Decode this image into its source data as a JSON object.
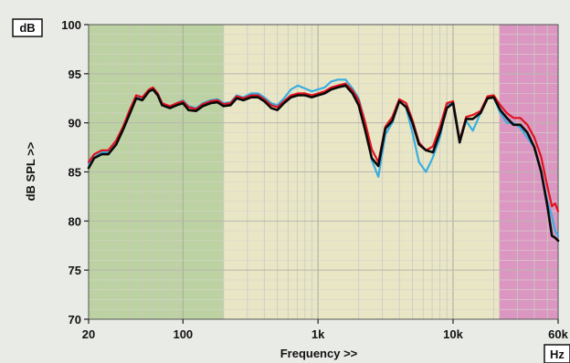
{
  "chart_data": {
    "type": "line",
    "xlabel": "Frequency >>",
    "ylabel": "dB SPL >>",
    "y_unit": "dB",
    "x_unit": "Hz",
    "x_scale": "log",
    "xlim": [
      20,
      60000
    ],
    "ylim": [
      70,
      100
    ],
    "grid": true,
    "x_ticks": [
      {
        "value": 20,
        "label": "20"
      },
      {
        "value": 100,
        "label": "100"
      },
      {
        "value": 1000,
        "label": "1k"
      },
      {
        "value": 10000,
        "label": "10k"
      },
      {
        "value": 60000,
        "label": "60k"
      }
    ],
    "y_ticks": [
      {
        "value": 100,
        "label": "100"
      },
      {
        "value": 95,
        "label": "95"
      },
      {
        "value": 90,
        "label": "90"
      },
      {
        "value": 85,
        "label": "85"
      },
      {
        "value": 80,
        "label": "80"
      },
      {
        "value": 75,
        "label": "75"
      },
      {
        "value": 70,
        "label": "70"
      }
    ],
    "bands": [
      {
        "from": 20,
        "to": 200,
        "color": "#bdd2a2"
      },
      {
        "from": 200,
        "to": 22000,
        "color": "#e9e6c6"
      },
      {
        "from": 22000,
        "to": 60000,
        "color": "#db97c1"
      }
    ],
    "series": [
      {
        "color": "#3aaee0",
        "width": 2.2,
        "x": [
          20,
          22,
          25,
          28,
          32,
          36,
          40,
          45,
          50,
          56,
          60,
          65,
          70,
          80,
          90,
          100,
          110,
          125,
          140,
          160,
          180,
          200,
          225,
          250,
          280,
          320,
          360,
          400,
          450,
          500,
          560,
          630,
          710,
          800,
          900,
          1000,
          1120,
          1250,
          1400,
          1600,
          1800,
          2000,
          2240,
          2500,
          2800,
          3150,
          3550,
          4000,
          4500,
          5000,
          5600,
          6300,
          7100,
          8000,
          9000,
          10000,
          11200,
          12500,
          14000,
          16000,
          18000,
          20000,
          22400,
          25000,
          28000,
          31500,
          35500,
          40000,
          45000,
          50000,
          54000,
          57000,
          60000
        ],
        "y": [
          85.8,
          86.5,
          87,
          87,
          88,
          89.5,
          91,
          92.7,
          92.4,
          93.3,
          93.5,
          93,
          92,
          91.6,
          92,
          92.3,
          91.7,
          91.5,
          92,
          92.3,
          92.4,
          92,
          92.1,
          92.8,
          92.6,
          93,
          93,
          92.6,
          92,
          91.8,
          92.5,
          93.4,
          93.8,
          93.5,
          93.2,
          93.4,
          93.6,
          94.2,
          94.4,
          94.4,
          93.5,
          92.5,
          90,
          86.2,
          84.5,
          88.8,
          90,
          92.3,
          91.5,
          89,
          86,
          85,
          86.5,
          88.5,
          91.8,
          92.2,
          88.4,
          90.2,
          89.2,
          91,
          92.5,
          92.6,
          91,
          90,
          90,
          89.5,
          88.5,
          87.5,
          85,
          82,
          80.5,
          79,
          78.5
        ]
      },
      {
        "color": "#e2121c",
        "width": 2.2,
        "x": [
          20,
          22,
          25,
          28,
          32,
          36,
          40,
          45,
          50,
          56,
          60,
          65,
          70,
          80,
          90,
          100,
          110,
          125,
          140,
          160,
          180,
          200,
          225,
          250,
          280,
          320,
          360,
          400,
          450,
          500,
          560,
          630,
          710,
          800,
          900,
          1000,
          1120,
          1250,
          1400,
          1600,
          1800,
          2000,
          2240,
          2500,
          2800,
          3150,
          3550,
          4000,
          4500,
          5000,
          5600,
          6300,
          7100,
          8000,
          9000,
          10000,
          11200,
          12500,
          14000,
          16000,
          18000,
          20000,
          22400,
          25000,
          28000,
          31500,
          35500,
          40000,
          45000,
          50000,
          54000,
          57000,
          60000
        ],
        "y": [
          86,
          86.8,
          87.2,
          87.2,
          88.2,
          89.6,
          91.2,
          92.8,
          92.6,
          93.4,
          93.6,
          93,
          92,
          91.7,
          92,
          92.2,
          91.6,
          91.4,
          91.9,
          92.2,
          92.3,
          91.9,
          92,
          92.7,
          92.5,
          92.8,
          92.8,
          92.4,
          91.8,
          91.6,
          92.2,
          92.8,
          93,
          93,
          92.8,
          93,
          93.2,
          93.6,
          93.8,
          94,
          93.3,
          92.3,
          90,
          87.3,
          86,
          89.6,
          90.6,
          92.4,
          92,
          90.3,
          88,
          87.2,
          87.6,
          89.6,
          92,
          92.2,
          88.2,
          90.6,
          90.8,
          91.2,
          92.7,
          92.8,
          91.8,
          91,
          90.5,
          90.5,
          89.8,
          88.5,
          86.5,
          83.5,
          81.5,
          81.8,
          81
        ]
      },
      {
        "color": "#0a0a0a",
        "width": 2.6,
        "x": [
          20,
          22,
          25,
          28,
          32,
          36,
          40,
          45,
          50,
          56,
          60,
          65,
          70,
          80,
          90,
          100,
          110,
          125,
          140,
          160,
          180,
          200,
          225,
          250,
          280,
          320,
          360,
          400,
          450,
          500,
          560,
          630,
          710,
          800,
          900,
          1000,
          1120,
          1250,
          1400,
          1600,
          1800,
          2000,
          2240,
          2500,
          2800,
          3150,
          3550,
          4000,
          4500,
          5000,
          5600,
          6300,
          7100,
          8000,
          9000,
          10000,
          11200,
          12500,
          14000,
          16000,
          18000,
          20000,
          22400,
          25000,
          28000,
          31500,
          35500,
          40000,
          45000,
          50000,
          54000,
          57000,
          60000
        ],
        "y": [
          85.4,
          86.4,
          86.8,
          86.8,
          87.8,
          89.3,
          90.8,
          92.5,
          92.3,
          93.2,
          93.4,
          92.8,
          91.8,
          91.5,
          91.8,
          92,
          91.3,
          91.2,
          91.7,
          92,
          92.1,
          91.7,
          91.8,
          92.5,
          92.3,
          92.6,
          92.6,
          92.2,
          91.5,
          91.3,
          92,
          92.6,
          92.8,
          92.8,
          92.6,
          92.8,
          93,
          93.4,
          93.6,
          93.8,
          93,
          91.8,
          89.2,
          86.4,
          85.6,
          89.4,
          90.2,
          92.2,
          91.6,
          90,
          87.8,
          87.2,
          87,
          89,
          91.5,
          92,
          88,
          90.4,
          90.4,
          91,
          92.5,
          92.6,
          91.3,
          90.5,
          89.8,
          89.8,
          89,
          87.5,
          85,
          81.5,
          78.5,
          78.3,
          78
        ]
      }
    ]
  }
}
